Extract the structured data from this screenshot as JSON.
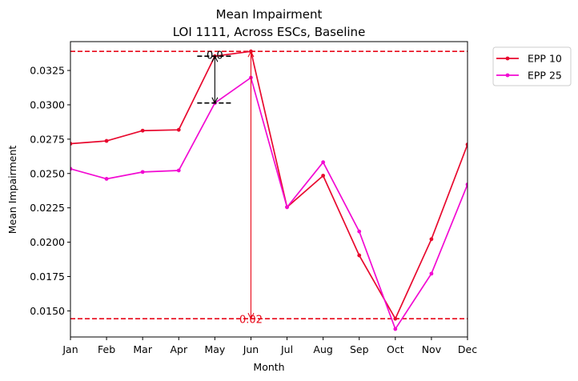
{
  "chart_data": {
    "type": "line",
    "title": "Mean Impairment",
    "subtitle": "LOI 1111, Across ESCs, Baseline",
    "xlabel": "Month",
    "ylabel": "Mean Impairment",
    "categories": [
      "Jan",
      "Feb",
      "Mar",
      "Apr",
      "May",
      "Jun",
      "Jul",
      "Aug",
      "Sep",
      "Oct",
      "Nov",
      "Dec"
    ],
    "ylim": [
      0.0131,
      0.0346
    ],
    "yticks": [
      0.015,
      0.0175,
      0.02,
      0.0225,
      0.025,
      0.0275,
      0.03,
      0.0325
    ],
    "ytick_labels": [
      "0.0150",
      "0.0175",
      "0.0200",
      "0.0225",
      "0.0250",
      "0.0275",
      "0.0300",
      "0.0325"
    ],
    "grid": false,
    "legend_position": "outside-top-right",
    "series": [
      {
        "name": "EPP 10",
        "color": "#e8092e",
        "values": [
          0.02717,
          0.02737,
          0.02812,
          0.02818,
          0.03354,
          0.03389,
          0.02255,
          0.02484,
          0.01904,
          0.01443,
          0.02022,
          0.02711
        ]
      },
      {
        "name": "EPP 25",
        "color": "#f20ad2",
        "values": [
          0.02534,
          0.02461,
          0.02511,
          0.02522,
          0.03013,
          0.03198,
          0.02255,
          0.02582,
          0.02078,
          0.01368,
          0.01771,
          0.0242
        ]
      }
    ],
    "reference_lines": [
      {
        "y": 0.03389,
        "color": "#e8091a",
        "style": "dashed"
      },
      {
        "y": 0.01443,
        "color": "#e8091a",
        "style": "dashed"
      }
    ],
    "annotations": [
      {
        "text": "0.0",
        "color": "#000000",
        "x_index": 4,
        "y_from": 0.03013,
        "y_to": 0.03354
      },
      {
        "text": "0.02",
        "color": "#e8091a",
        "x_index": 5,
        "y_from": 0.01443,
        "y_to": 0.03389
      }
    ]
  }
}
